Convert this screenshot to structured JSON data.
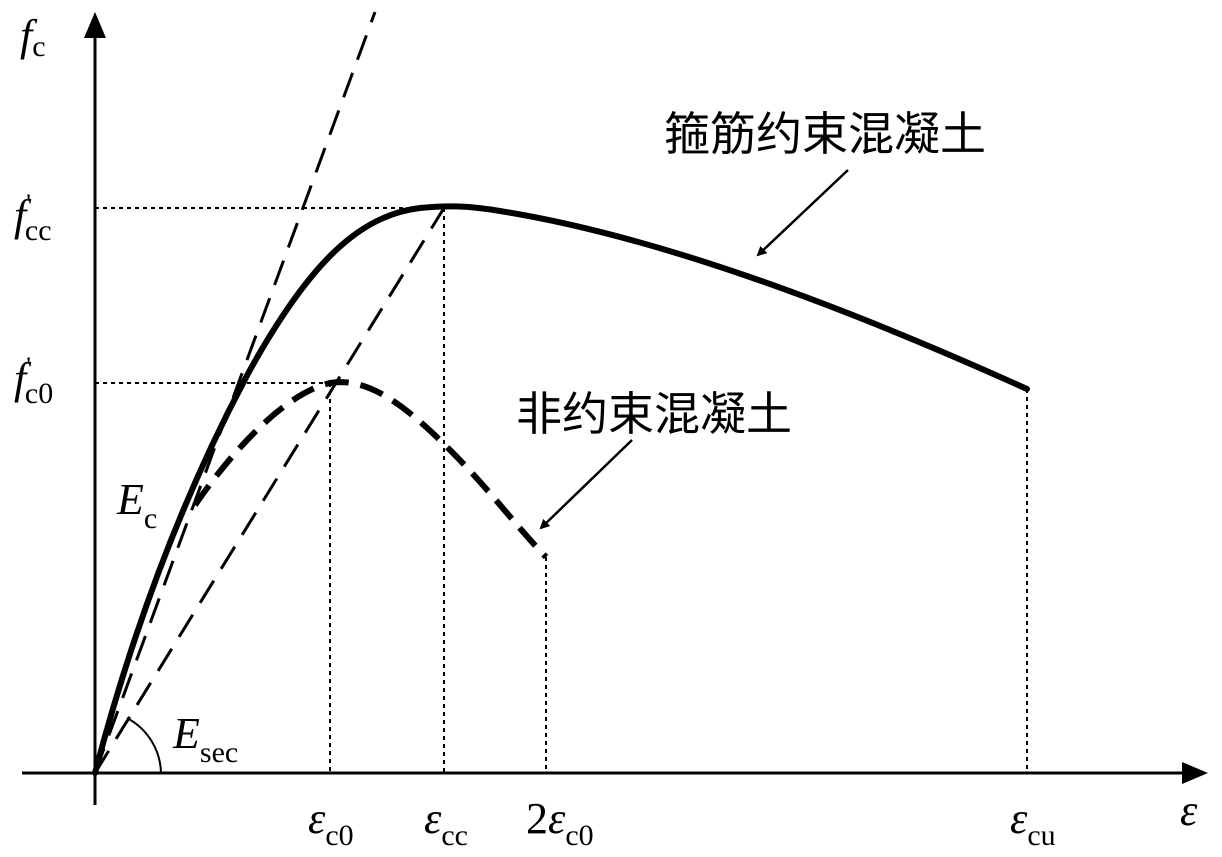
{
  "axes": {
    "y_symbol": "f",
    "y_sub": "c",
    "x_symbol": "ε"
  },
  "y_ticks": [
    {
      "symbol": "f",
      "prime": "'",
      "sub": "cc"
    },
    {
      "symbol": "f",
      "prime": "'",
      "sub": "c0"
    }
  ],
  "x_ticks": [
    {
      "prefix": "",
      "symbol": "ε",
      "sub": "c0"
    },
    {
      "prefix": "",
      "symbol": "ε",
      "sub": "cc"
    },
    {
      "prefix": "2",
      "symbol": "ε",
      "sub": "c0"
    },
    {
      "prefix": "",
      "symbol": "ε",
      "sub": "cu"
    }
  ],
  "moduli": {
    "tangent": {
      "symbol": "E",
      "sub": "c"
    },
    "secant": {
      "symbol": "E",
      "sub": "sec"
    }
  },
  "curves": {
    "confined": "箍筋约束混凝土",
    "unconfined": "非约束混凝土"
  },
  "colors": {
    "ink": "#000000",
    "background": "#ffffff"
  }
}
